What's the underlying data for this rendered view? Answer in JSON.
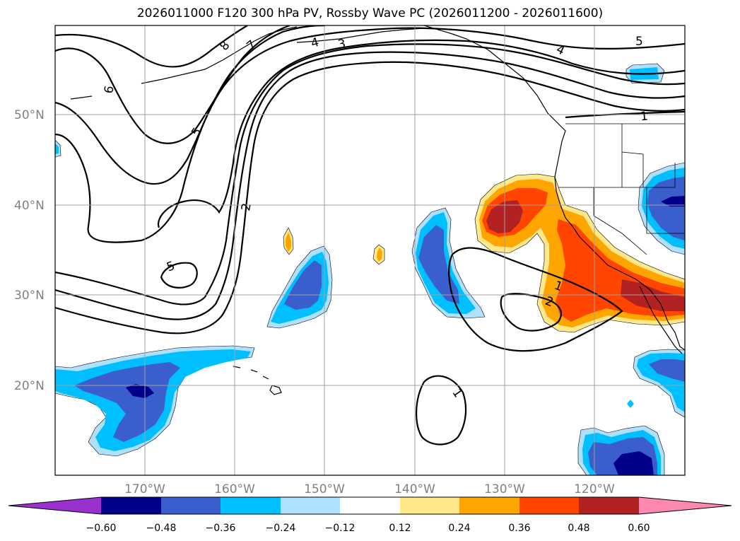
{
  "title": "2026011000 F120 300 hPa PV, Rossby Wave PC (2026011200 - 2026011600)",
  "lat_labels": [
    "50°N",
    "40°N",
    "30°N",
    "20°N"
  ],
  "lon_labels": [
    "170°W",
    "160°W",
    "150°W",
    "140°W",
    "130°W",
    "120°W"
  ],
  "contour_labels": [
    "8",
    "7",
    "6",
    "5",
    "4",
    "3",
    "2",
    "5",
    "1",
    "1",
    "2",
    "1",
    "4",
    "5",
    "1"
  ],
  "colorbar": {
    "ticks": [
      "−0.60",
      "−0.48",
      "−0.36",
      "−0.24",
      "−0.12",
      "0.12",
      "0.24",
      "0.36",
      "0.48",
      "0.60"
    ],
    "colors": [
      "#9b30d0",
      "#00008b",
      "#3a5fcd",
      "#00bfff",
      "#b0e0ff",
      "#ffffff",
      "#ffe88a",
      "#ffa500",
      "#ff4500",
      "#b22222",
      "#ff88b0"
    ]
  },
  "fill_colors": {
    "neg_light": "#b0e0ff",
    "neg_mid": "#00bfff",
    "neg_strong": "#3a5fcd",
    "neg_max": "#00008b",
    "pos_light": "#ffe88a",
    "pos_mid": "#ffa500",
    "pos_strong": "#ff4500",
    "pos_max": "#b22222"
  }
}
